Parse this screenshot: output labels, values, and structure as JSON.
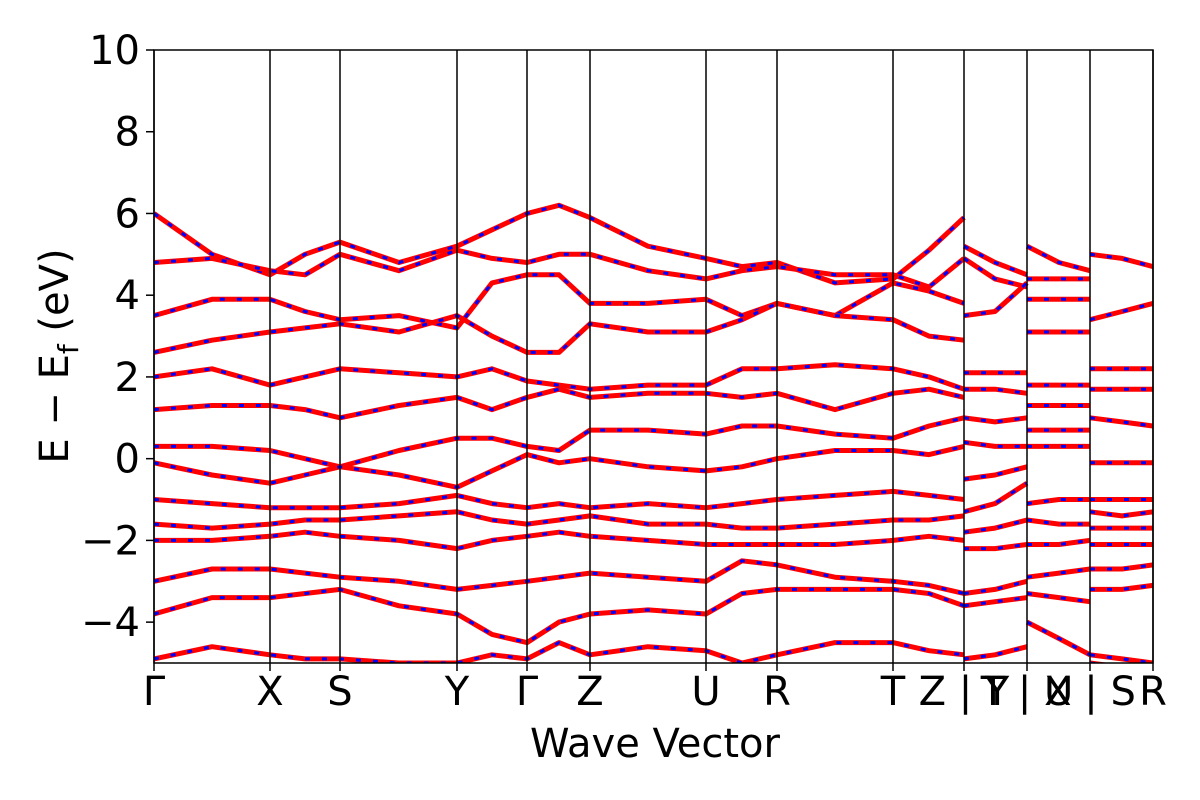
{
  "chart_data": {
    "type": "band_structure",
    "xlabel": "Wave Vector",
    "ylabel": "E − E",
    "ylabel_sub": "f",
    "ylabel_unit": "(eV)",
    "xlim": [
      0,
      999
    ],
    "ylim": [
      -5,
      10
    ],
    "xticks": [
      {
        "value": 0,
        "label": "Γ"
      },
      {
        "value": 116,
        "label": "X"
      },
      {
        "value": 186,
        "label": "S"
      },
      {
        "value": 303,
        "label": "Y"
      },
      {
        "value": 373,
        "label": "Γ"
      },
      {
        "value": 436,
        "label": "Z"
      },
      {
        "value": 552,
        "label": "U"
      },
      {
        "value": 623,
        "label": "R"
      },
      {
        "value": 739,
        "label": "T"
      },
      {
        "value": 810,
        "label": "Z | Y"
      },
      {
        "value": 873,
        "label": "T | U"
      },
      {
        "value": 936,
        "label": "X | S"
      },
      {
        "value": 999,
        "label": "R"
      }
    ],
    "yticks": [
      {
        "value": -4,
        "label": "−4"
      },
      {
        "value": -2,
        "label": "−2"
      },
      0,
      2,
      4,
      6,
      8,
      10
    ],
    "grid_x": true,
    "color": "#ff0000",
    "dash_color": "#0000ff",
    "x": [
      0,
      58,
      116,
      151,
      186,
      245,
      303,
      338,
      373,
      405,
      436,
      494,
      552,
      588,
      623,
      681,
      739,
      775,
      810,
      810,
      810,
      841,
      873,
      873,
      873,
      905,
      936,
      936,
      936,
      968,
      999
    ],
    "series": [
      {
        "values": [
          6.0,
          5.0,
          4.5,
          5.0,
          5.3,
          4.8,
          5.2,
          5.6,
          6.0,
          6.2,
          5.9,
          5.2,
          4.9,
          4.7,
          4.8,
          4.3,
          4.4,
          5.1,
          5.9,
          null,
          5.2,
          4.8,
          4.5,
          null,
          5.2,
          4.8,
          4.6,
          null,
          5.0,
          4.9,
          4.7
        ]
      },
      {
        "values": [
          4.8,
          4.9,
          4.6,
          4.5,
          5.0,
          4.6,
          5.1,
          4.9,
          4.8,
          5.0,
          5.0,
          4.6,
          4.4,
          4.6,
          4.7,
          4.5,
          4.5,
          4.2,
          4.9,
          null,
          4.9,
          4.4,
          4.2,
          null,
          4.4,
          4.4,
          4.4,
          null,
          3.4,
          3.6,
          3.8
        ]
      },
      {
        "values": [
          3.5,
          3.9,
          3.9,
          3.6,
          3.4,
          3.5,
          3.2,
          4.3,
          4.5,
          4.5,
          3.8,
          3.8,
          3.9,
          3.5,
          3.8,
          3.5,
          4.3,
          4.1,
          3.8,
          null,
          3.5,
          3.6,
          4.3,
          null,
          3.9,
          3.9,
          3.9,
          null,
          2.2,
          2.2,
          2.2
        ]
      },
      {
        "values": [
          2.6,
          2.9,
          3.1,
          3.2,
          3.3,
          3.1,
          3.5,
          3.0,
          2.6,
          2.6,
          3.3,
          3.1,
          3.1,
          3.4,
          3.8,
          3.5,
          3.4,
          3.0,
          2.9,
          null,
          2.1,
          2.1,
          2.1,
          null,
          3.1,
          3.1,
          3.1,
          null,
          1.7,
          1.7,
          1.7
        ]
      },
      {
        "values": [
          2.0,
          2.2,
          1.8,
          2.0,
          2.2,
          2.1,
          2.0,
          2.2,
          1.9,
          1.8,
          1.7,
          1.8,
          1.8,
          2.2,
          2.2,
          2.3,
          2.2,
          2.0,
          1.7,
          null,
          1.7,
          1.7,
          1.6,
          null,
          1.8,
          1.8,
          1.8,
          null,
          1.0,
          0.9,
          0.8
        ]
      },
      {
        "values": [
          1.2,
          1.3,
          1.3,
          1.2,
          1.0,
          1.3,
          1.5,
          1.2,
          1.5,
          1.7,
          1.5,
          1.6,
          1.6,
          1.5,
          1.6,
          1.2,
          1.6,
          1.7,
          1.5,
          null,
          1.0,
          0.9,
          1.0,
          null,
          1.3,
          1.3,
          1.3,
          null,
          -0.1,
          -0.1,
          -0.1
        ]
      },
      {
        "values": [
          0.3,
          0.3,
          0.2,
          0.0,
          -0.2,
          0.2,
          0.5,
          0.5,
          0.3,
          0.2,
          0.7,
          0.7,
          0.6,
          0.8,
          0.8,
          0.6,
          0.5,
          0.8,
          1.0,
          null,
          0.4,
          0.3,
          0.3,
          null,
          0.7,
          0.7,
          0.7,
          null,
          -1.0,
          -1.0,
          -1.0
        ]
      },
      {
        "values": [
          -0.1,
          -0.4,
          -0.6,
          -0.4,
          -0.2,
          -0.4,
          -0.7,
          -0.3,
          0.1,
          -0.1,
          0.0,
          -0.2,
          -0.3,
          -0.2,
          0.0,
          0.2,
          0.2,
          0.1,
          0.3,
          null,
          -0.5,
          -0.4,
          -0.2,
          null,
          0.3,
          0.3,
          0.3,
          null,
          -1.3,
          -1.4,
          -1.3
        ]
      },
      {
        "values": [
          -1.0,
          -1.1,
          -1.2,
          -1.2,
          -1.2,
          -1.1,
          -0.9,
          -1.1,
          -1.2,
          -1.1,
          -1.2,
          -1.1,
          -1.2,
          -1.1,
          -1.0,
          -0.9,
          -0.8,
          -0.9,
          -1.0,
          null,
          -1.3,
          -1.1,
          -0.6,
          null,
          -1.1,
          -1.0,
          -1.0,
          null,
          -1.7,
          -1.7,
          -1.7
        ]
      },
      {
        "values": [
          -1.6,
          -1.7,
          -1.6,
          -1.5,
          -1.5,
          -1.4,
          -1.3,
          -1.5,
          -1.6,
          -1.5,
          -1.4,
          -1.6,
          -1.6,
          -1.7,
          -1.7,
          -1.6,
          -1.5,
          -1.5,
          -1.4,
          null,
          -1.8,
          -1.7,
          -1.5,
          null,
          -1.5,
          -1.6,
          -1.6,
          null,
          -2.1,
          -2.1,
          -2.1
        ]
      },
      {
        "values": [
          -2.0,
          -2.0,
          -1.9,
          -1.8,
          -1.9,
          -2.0,
          -2.2,
          -2.0,
          -1.9,
          -1.8,
          -1.9,
          -2.0,
          -2.1,
          -2.1,
          -2.1,
          -2.1,
          -2.0,
          -1.9,
          -2.0,
          null,
          -2.2,
          -2.2,
          -2.1,
          null,
          -2.1,
          -2.1,
          -2.0,
          null,
          -2.7,
          -2.7,
          -2.6
        ]
      },
      {
        "values": [
          -3.0,
          -2.7,
          -2.7,
          -2.8,
          -2.9,
          -3.0,
          -3.2,
          -3.1,
          -3.0,
          -2.9,
          -2.8,
          -2.9,
          -3.0,
          -2.5,
          -2.6,
          -2.9,
          -3.0,
          -3.1,
          -3.3,
          null,
          -3.3,
          -3.2,
          -3.0,
          null,
          -2.9,
          -2.8,
          -2.7,
          null,
          -3.2,
          -3.2,
          -3.1
        ]
      },
      {
        "values": [
          -3.8,
          -3.4,
          -3.4,
          -3.3,
          -3.2,
          -3.6,
          -3.8,
          -4.3,
          -4.5,
          -4.0,
          -3.8,
          -3.7,
          -3.8,
          -3.3,
          -3.2,
          -3.2,
          -3.2,
          -3.3,
          -3.6,
          null,
          -3.6,
          -3.5,
          -3.4,
          null,
          -3.3,
          -3.4,
          -3.5,
          null,
          -4.8,
          -4.9,
          -5.0
        ]
      },
      {
        "values": [
          -4.9,
          -4.6,
          -4.8,
          -4.9,
          -4.9,
          -5.0,
          -5.0,
          -4.8,
          -4.9,
          -4.5,
          -4.8,
          -4.6,
          -4.7,
          -5.0,
          -4.8,
          -4.5,
          -4.5,
          -4.7,
          -4.8,
          null,
          -4.9,
          -4.8,
          -4.6,
          null,
          -4.0,
          -4.4,
          -4.8,
          null,
          -5.0,
          -5.1,
          -5.2
        ]
      }
    ]
  }
}
